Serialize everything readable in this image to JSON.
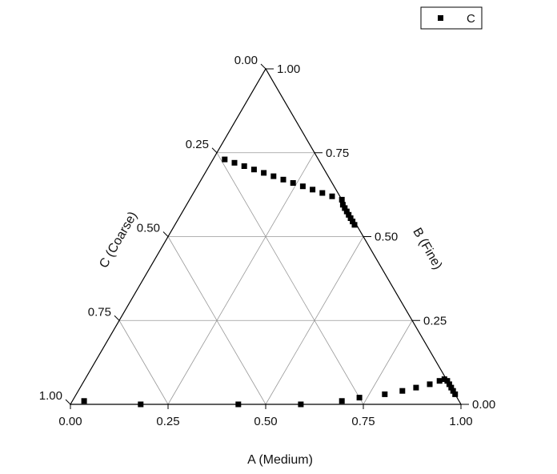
{
  "chart_data": {
    "type": "scatter",
    "subtype": "ternary",
    "title": "",
    "axes": {
      "a": {
        "label": "A (Medium)",
        "ticks": [
          "0.00",
          "0.25",
          "0.50",
          "0.75",
          "1.00"
        ]
      },
      "b": {
        "label": "B (Fine)",
        "ticks": [
          "0.00",
          "0.25",
          "0.50",
          "0.75",
          "1.00"
        ]
      },
      "c": {
        "label": "C (Coarse)",
        "ticks": [
          "0.00",
          "0.25",
          "0.50",
          "0.75",
          "1.00"
        ]
      }
    },
    "grid": true,
    "grid_step": 0.25,
    "legend_position": "top-right",
    "colors": {
      "marker": "#000000",
      "grid": "#999999",
      "frame": "#000000"
    },
    "series": [
      {
        "name": "C",
        "marker": "square",
        "points": [
          {
            "a": 0.03,
            "b": 0.01,
            "c": 0.96
          },
          {
            "a": 0.18,
            "b": 0.0,
            "c": 0.82
          },
          {
            "a": 0.43,
            "b": 0.0,
            "c": 0.57
          },
          {
            "a": 0.59,
            "b": 0.0,
            "c": 0.41
          },
          {
            "a": 0.69,
            "b": 0.01,
            "c": 0.3
          },
          {
            "a": 0.73,
            "b": 0.02,
            "c": 0.25
          },
          {
            "a": 0.79,
            "b": 0.03,
            "c": 0.18
          },
          {
            "a": 0.83,
            "b": 0.04,
            "c": 0.13
          },
          {
            "a": 0.86,
            "b": 0.05,
            "c": 0.09
          },
          {
            "a": 0.89,
            "b": 0.06,
            "c": 0.05
          },
          {
            "a": 0.91,
            "b": 0.07,
            "c": 0.02
          },
          {
            "a": 0.92,
            "b": 0.075,
            "c": 0.005
          },
          {
            "a": 0.93,
            "b": 0.07,
            "c": 0.0
          },
          {
            "a": 0.94,
            "b": 0.06,
            "c": 0.0
          },
          {
            "a": 0.95,
            "b": 0.05,
            "c": 0.0
          },
          {
            "a": 0.96,
            "b": 0.04,
            "c": 0.0
          },
          {
            "a": 0.97,
            "b": 0.03,
            "c": 0.0
          },
          {
            "a": 0.03,
            "b": 0.73,
            "c": 0.24
          },
          {
            "a": 0.06,
            "b": 0.72,
            "c": 0.22
          },
          {
            "a": 0.09,
            "b": 0.71,
            "c": 0.2
          },
          {
            "a": 0.12,
            "b": 0.7,
            "c": 0.18
          },
          {
            "a": 0.15,
            "b": 0.69,
            "c": 0.16
          },
          {
            "a": 0.18,
            "b": 0.68,
            "c": 0.14
          },
          {
            "a": 0.21,
            "b": 0.67,
            "c": 0.12
          },
          {
            "a": 0.24,
            "b": 0.66,
            "c": 0.1
          },
          {
            "a": 0.27,
            "b": 0.65,
            "c": 0.08
          },
          {
            "a": 0.3,
            "b": 0.64,
            "c": 0.06
          },
          {
            "a": 0.33,
            "b": 0.63,
            "c": 0.04
          },
          {
            "a": 0.36,
            "b": 0.62,
            "c": 0.02
          },
          {
            "a": 0.39,
            "b": 0.61,
            "c": 0.0
          },
          {
            "a": 0.4,
            "b": 0.595,
            "c": 0.005
          },
          {
            "a": 0.41,
            "b": 0.585,
            "c": 0.005
          },
          {
            "a": 0.42,
            "b": 0.575,
            "c": 0.005
          },
          {
            "a": 0.43,
            "b": 0.565,
            "c": 0.005
          },
          {
            "a": 0.44,
            "b": 0.555,
            "c": 0.005
          },
          {
            "a": 0.45,
            "b": 0.545,
            "c": 0.005
          },
          {
            "a": 0.46,
            "b": 0.535,
            "c": 0.005
          }
        ]
      }
    ]
  }
}
